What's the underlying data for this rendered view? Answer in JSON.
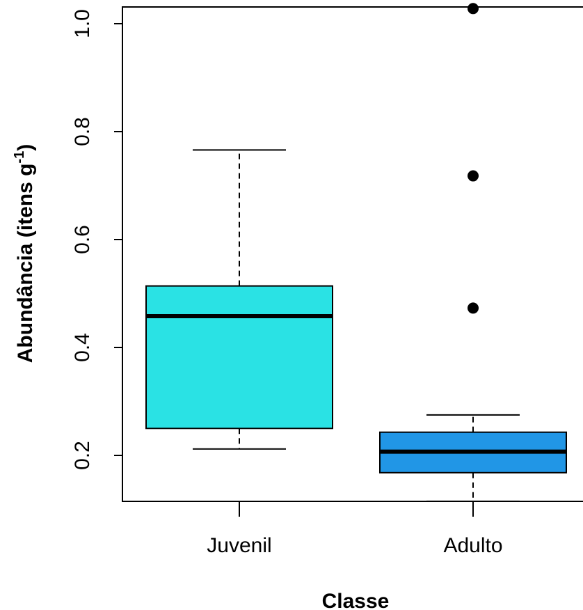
{
  "chart_data": {
    "type": "boxplot",
    "title": "",
    "xlabel": "Classe",
    "ylabel_main": "Abundância (itens g",
    "ylabel_sup": "-1",
    "ylabel_end": ")",
    "ylim": [
      0.115,
      1.03
    ],
    "yticks": [
      0.2,
      0.4,
      0.6,
      0.8,
      1.0
    ],
    "ytick_labels": [
      "0.2",
      "0.4",
      "0.6",
      "0.8",
      "1.0"
    ],
    "categories": [
      "Juvenil",
      "Adulto"
    ],
    "boxes": [
      {
        "category": "Juvenil",
        "color": "#2ae2e4",
        "whisker_low": 0.212,
        "q1": 0.25,
        "median": 0.458,
        "q3": 0.514,
        "whisker_high": 0.766,
        "outliers": []
      },
      {
        "category": "Adulto",
        "color": "#2196e6",
        "whisker_low": 0.115,
        "q1": 0.168,
        "median": 0.207,
        "q3": 0.243,
        "whisker_high": 0.275,
        "outliers": [
          0.473,
          0.718,
          1.028
        ]
      }
    ]
  }
}
